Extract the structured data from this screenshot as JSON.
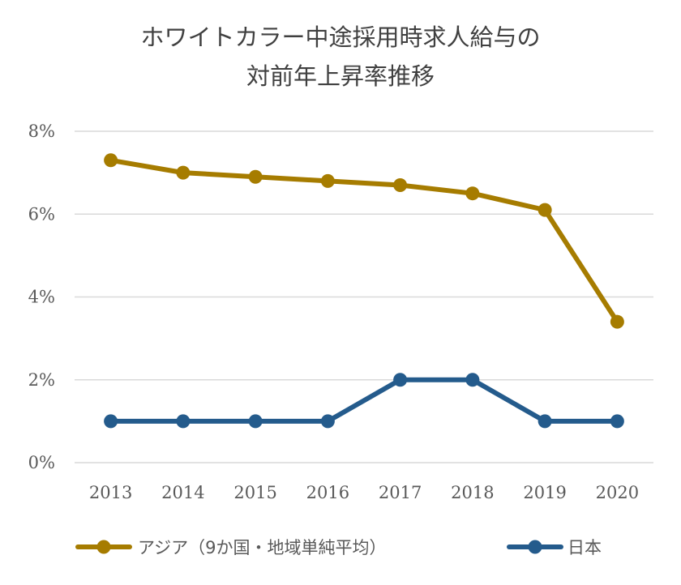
{
  "chart_data": {
    "type": "line",
    "title_lines": [
      "ホワイトカラー中途採用時求人給与の",
      "対前年上昇率推移"
    ],
    "categories": [
      "2013",
      "2014",
      "2015",
      "2016",
      "2017",
      "2018",
      "2019",
      "2020"
    ],
    "y_ticks": [
      "0%",
      "2%",
      "4%",
      "6%",
      "8%"
    ],
    "ylim": [
      0,
      8
    ],
    "grid": true,
    "legend_position": "bottom",
    "series": [
      {
        "name": "アジア（9か国・地域単純平均）",
        "color": "#A67C00",
        "values": [
          7.3,
          7.0,
          6.9,
          6.8,
          6.7,
          6.5,
          6.1,
          3.4
        ]
      },
      {
        "name": "日本",
        "color": "#245B8C",
        "values": [
          1.0,
          1.0,
          1.0,
          1.0,
          2.0,
          2.0,
          1.0,
          1.0
        ]
      }
    ]
  }
}
